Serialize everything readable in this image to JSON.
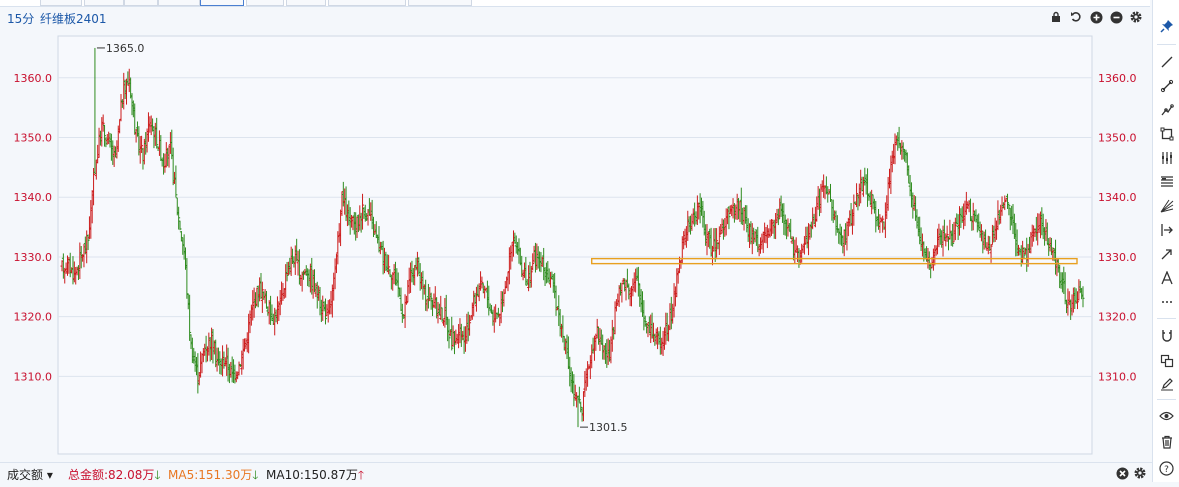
{
  "header": {
    "timeframe": "15分",
    "symbol": "纤维板2401"
  },
  "footer": {
    "indicator": "成交额",
    "total": "总金额:82.08万",
    "ma5": "MA5:151.30万",
    "ma10": "MA10:150.87万"
  },
  "colors": {
    "up": "#cc1c1c",
    "down": "#2e8b1e",
    "grid": "#dde4ee",
    "axis": "#c8102e",
    "support_line": "#e8a020",
    "accent": "#1c58a8"
  },
  "chart_data": {
    "type": "candlestick",
    "title": "纤维板2401 15分",
    "ylim": [
      1297,
      1367
    ],
    "yticks": [
      1310.0,
      1320.0,
      1330.0,
      1340.0,
      1350.0,
      1360.0
    ],
    "ytick_labels": [
      "1310.0",
      "1320.0",
      "1330.0",
      "1340.0",
      "1350.0",
      "1360.0"
    ],
    "annotations": [
      {
        "text": "1365.0",
        "value": 1365.0,
        "kind": "high"
      },
      {
        "text": "1301.5",
        "value": 1301.5,
        "kind": "low"
      }
    ],
    "support_level": 1329.3,
    "path": [
      1328,
      1329,
      1327,
      1330,
      1333,
      1345,
      1352,
      1349,
      1346,
      1357,
      1360,
      1350,
      1347,
      1353,
      1350,
      1346,
      1348,
      1338,
      1331,
      1315,
      1310,
      1315,
      1316,
      1312,
      1313,
      1310,
      1312,
      1316,
      1322,
      1325,
      1322,
      1320,
      1322,
      1328,
      1330,
      1327,
      1328,
      1325,
      1322,
      1320,
      1327,
      1340,
      1336,
      1335,
      1338,
      1337,
      1333,
      1330,
      1328,
      1326,
      1320,
      1327,
      1328,
      1324,
      1323,
      1321,
      1320,
      1316,
      1317,
      1316,
      1322,
      1325,
      1324,
      1320,
      1321,
      1327,
      1333,
      1329,
      1325,
      1330,
      1329,
      1327,
      1324,
      1318,
      1312,
      1306,
      1305,
      1312,
      1318,
      1315,
      1313,
      1322,
      1326,
      1325,
      1326,
      1320,
      1318,
      1316,
      1317,
      1320,
      1328,
      1334,
      1336,
      1339,
      1334,
      1331,
      1334,
      1336,
      1338,
      1339,
      1335,
      1333,
      1332,
      1334,
      1336,
      1338,
      1335,
      1330,
      1331,
      1334,
      1337,
      1342,
      1340,
      1335,
      1333,
      1336,
      1340,
      1343,
      1340,
      1336,
      1336,
      1345,
      1350,
      1347,
      1341,
      1335,
      1330,
      1329,
      1333,
      1334,
      1333,
      1336,
      1338,
      1337,
      1334,
      1331,
      1334,
      1338,
      1340,
      1334,
      1330,
      1331,
      1335,
      1336,
      1332,
      1330,
      1325,
      1322,
      1323,
      1324
    ],
    "high": 1365.0,
    "low": 1301.5
  }
}
